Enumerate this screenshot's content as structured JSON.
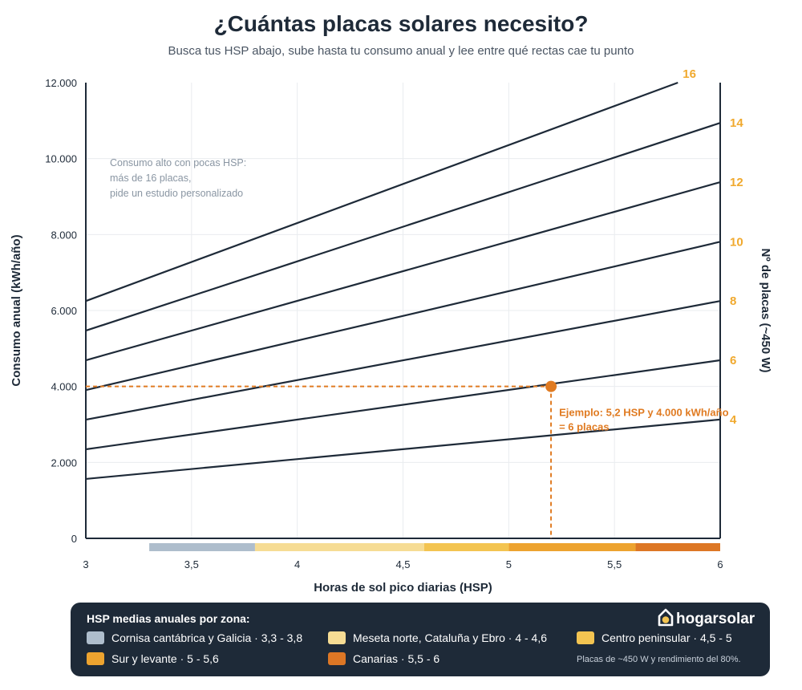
{
  "title": "¿Cuántas placas solares necesito?",
  "subtitle": "Busca tus HSP abajo, sube hasta tu consumo anual y lee entre qué rectas cae tu punto",
  "chart_data": {
    "type": "line",
    "xlabel": "Horas de sol pico diarias (HSP)",
    "ylabel": "Consumo anual (kWh/año)",
    "y2label": "Nº de placas (~450 W)",
    "xlim": [
      3,
      6
    ],
    "ylim": [
      0,
      12000
    ],
    "x_ticks": [
      {
        "value": 3,
        "label": "3"
      },
      {
        "value": 3.5,
        "label": "3,5"
      },
      {
        "value": 4,
        "label": "4"
      },
      {
        "value": 4.5,
        "label": "4,5"
      },
      {
        "value": 5,
        "label": "5"
      },
      {
        "value": 5.5,
        "label": "5,5"
      },
      {
        "value": 6,
        "label": "6"
      }
    ],
    "y_ticks": [
      {
        "value": 0,
        "label": "0"
      },
      {
        "value": 2000,
        "label": "2.000"
      },
      {
        "value": 4000,
        "label": "4.000"
      },
      {
        "value": 6000,
        "label": "6.000"
      },
      {
        "value": 8000,
        "label": "8.000"
      },
      {
        "value": 10000,
        "label": "10.000"
      },
      {
        "value": 12000,
        "label": "12.000"
      }
    ],
    "series": [
      {
        "name": "4",
        "x": [
          3,
          6
        ],
        "y": [
          1565,
          3130
        ]
      },
      {
        "name": "6",
        "x": [
          3,
          6
        ],
        "y": [
          2345,
          4690
        ]
      },
      {
        "name": "8",
        "x": [
          3,
          6
        ],
        "y": [
          3125,
          6250
        ]
      },
      {
        "name": "10",
        "x": [
          3,
          6
        ],
        "y": [
          3905,
          7810
        ]
      },
      {
        "name": "12",
        "x": [
          3,
          6
        ],
        "y": [
          4690,
          9380
        ]
      },
      {
        "name": "14",
        "x": [
          3,
          6
        ],
        "y": [
          5470,
          10940
        ]
      },
      {
        "name": "16",
        "x": [
          3,
          5.8
        ],
        "y": [
          6250,
          12000
        ]
      }
    ],
    "zones": [
      {
        "from": 3.3,
        "to": 3.8,
        "color": "#aebdcc"
      },
      {
        "from": 3.8,
        "to": 4.6,
        "color": "#f6dc94"
      },
      {
        "from": 4.6,
        "to": 5.0,
        "color": "#f3c451"
      },
      {
        "from": 5.0,
        "to": 5.6,
        "color": "#eda32f"
      },
      {
        "from": 5.6,
        "to": 6.0,
        "color": "#dd7725"
      }
    ],
    "example": {
      "x": 5.2,
      "y": 4000,
      "label_line1": "Ejemplo: 5,2 HSP y 4.000 kWh/año",
      "label_line2": "= 6 placas"
    },
    "annotation": {
      "line1": "Consumo alto con pocas HSP:",
      "line2": "más de 16 placas,",
      "line3": "pide un estudio personalizado"
    },
    "grid": true,
    "colors": {
      "line": "#1e2a38",
      "accent": "#e07b22",
      "panel_label": "#f0a92e",
      "grid": "#e9ecef",
      "annotation": "#8a96a3"
    }
  },
  "legend": {
    "title": "HSP medias anuales por zona:",
    "items": [
      {
        "label": "Cornisa cantábrica y Galicia · 3,3 - 3,8",
        "color": "#aebdcc"
      },
      {
        "label": "Meseta norte, Cataluña y Ebro · 4 - 4,6",
        "color": "#f6dc94"
      },
      {
        "label": "Centro peninsular · 4,5 - 5",
        "color": "#f3c451"
      },
      {
        "label": "Sur y levante · 5 - 5,6",
        "color": "#eda32f"
      },
      {
        "label": "Canarias · 5,5 - 6",
        "color": "#dd7725"
      }
    ],
    "footnote": "Placas de ~450 W y rendimiento del 80%.",
    "brand": "hogarsolar",
    "brand_icon": "house-sun-icon"
  }
}
